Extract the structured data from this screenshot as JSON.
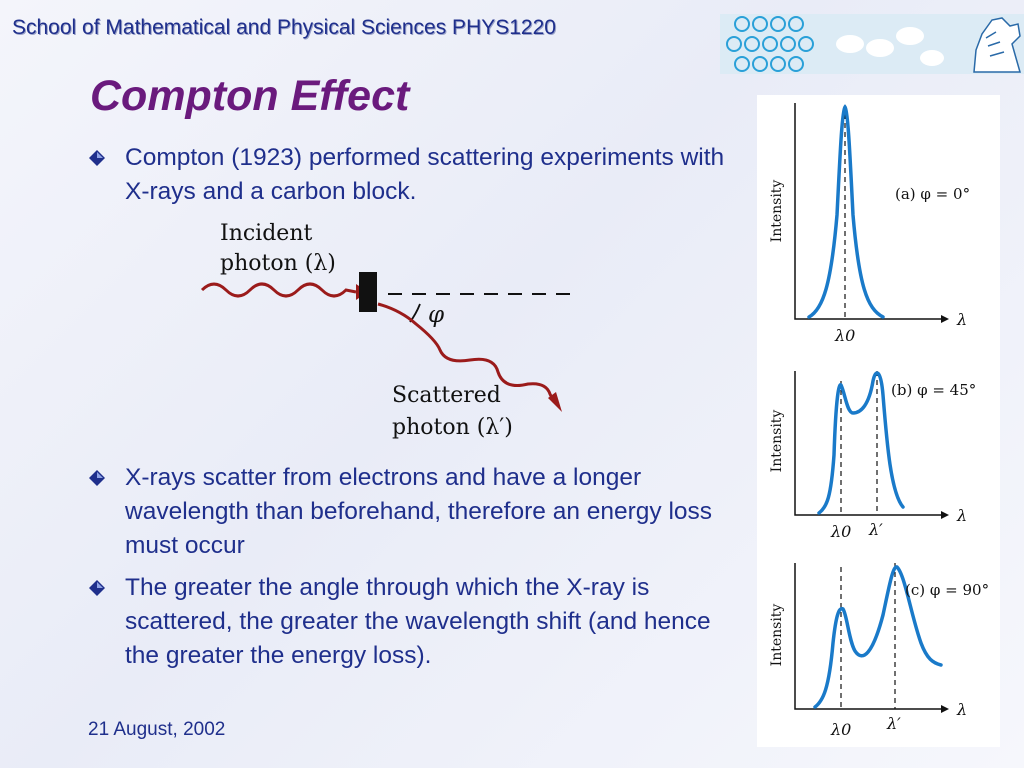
{
  "header": {
    "text": "School of Mathematical and Physical Sciences  PHYS1220"
  },
  "slide": {
    "title": "Compton Effect",
    "bullets": [
      "Compton (1923) performed scattering experiments with X-rays and a carbon block.",
      "X-rays scatter from electrons and have a longer wavelength than beforehand, therefore an energy loss must occur",
      "The greater the angle through which the X-ray is scattered, the greater the wavelength shift (and hence the greater the energy loss)."
    ],
    "date": "21 August, 2002"
  },
  "diagram": {
    "incident_line1": "Incident",
    "incident_line2": "photon (λ)",
    "angle": "φ",
    "scattered_line1": "Scattered",
    "scattered_line2": "photon (λ′)"
  },
  "graphs": [
    {
      "caption": "(a) φ = 0°",
      "ylabel": "Intensity",
      "xlabel": "λ",
      "tick1": "λ0"
    },
    {
      "caption": "(b) φ = 45°",
      "ylabel": "Intensity",
      "xlabel": "λ",
      "tick1": "λ0",
      "tick2": "λ′"
    },
    {
      "caption": "(c) φ = 90°",
      "ylabel": "Intensity",
      "xlabel": "λ",
      "tick1": "λ0",
      "tick2": "λ′"
    }
  ],
  "colors": {
    "heading": "#6a1a7d",
    "text": "#1f2f8c",
    "curve": "#1a7ac9",
    "photon": "#9b1b1b"
  }
}
